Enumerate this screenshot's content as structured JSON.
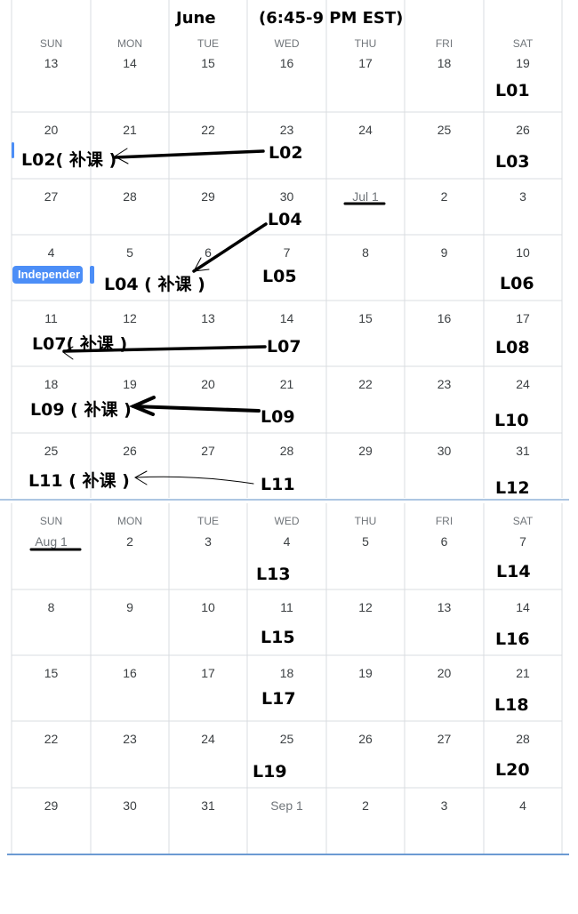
{
  "header": {
    "month": "June",
    "time": "(6:45-9 PM EST)"
  },
  "weekday_labels": [
    "SUN",
    "MON",
    "TUE",
    "WED",
    "THU",
    "FRI",
    "SAT"
  ],
  "weeks": [
    [
      "13",
      "14",
      "15",
      "16",
      "17",
      "18",
      "19"
    ],
    [
      "20",
      "21",
      "22",
      "23",
      "24",
      "25",
      "26"
    ],
    [
      "27",
      "28",
      "29",
      "30",
      "Jul 1",
      "2",
      "3"
    ],
    [
      "4",
      "5",
      "6",
      "7",
      "8",
      "9",
      "10"
    ],
    [
      "11",
      "12",
      "13",
      "14",
      "15",
      "16",
      "17"
    ],
    [
      "18",
      "19",
      "20",
      "21",
      "22",
      "23",
      "24"
    ],
    [
      "25",
      "26",
      "27",
      "28",
      "29",
      "30",
      "31"
    ],
    [
      "Aug 1",
      "2",
      "3",
      "4",
      "5",
      "6",
      "7"
    ],
    [
      "8",
      "9",
      "10",
      "11",
      "12",
      "13",
      "14"
    ],
    [
      "15",
      "16",
      "17",
      "18",
      "19",
      "20",
      "21"
    ],
    [
      "22",
      "23",
      "24",
      "25",
      "26",
      "27",
      "28"
    ],
    [
      "29",
      "30",
      "31",
      "Sep 1",
      "2",
      "3",
      "4"
    ]
  ],
  "event_chip": "Independer",
  "lessons": {
    "l01": "L01",
    "l02_makeup": "L02( 补课 )",
    "l02": "L02",
    "l03": "L03",
    "l04": "L04",
    "l04_makeup": "L04 ( 补课 )",
    "l05": "L05",
    "l06": "L06",
    "l07_makeup": "L07( 补课 )",
    "l07": "L07",
    "l08": "L08",
    "l09_makeup": "L09 ( 补课 )",
    "l09": "L09",
    "l10": "L10",
    "l11_makeup": "L11 ( 补课 )",
    "l11": "L11",
    "l12": "L12",
    "l13": "L13",
    "l14": "L14",
    "l15": "L15",
    "l16": "L16",
    "l17": "L17",
    "l18": "L18",
    "l19": "L19",
    "l20": "L20"
  }
}
